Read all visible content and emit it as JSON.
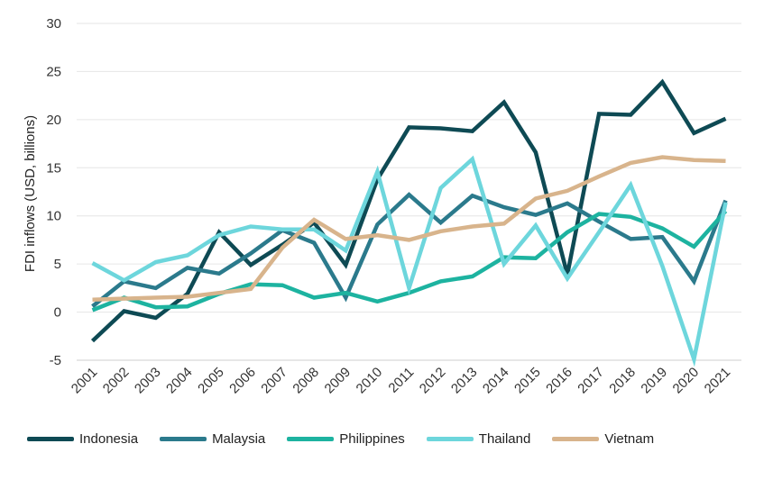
{
  "chart_data": {
    "type": "line",
    "ylabel": "FDI inflows (USD, billions)",
    "xlabel": "",
    "ylim": [
      -5,
      30
    ],
    "yticks": [
      -5,
      0,
      5,
      10,
      15,
      20,
      25,
      30
    ],
    "grid": "horizontal",
    "legend_position": "bottom",
    "categories": [
      "2001",
      "2002",
      "2003",
      "2004",
      "2005",
      "2006",
      "2007",
      "2008",
      "2009",
      "2010",
      "2011",
      "2012",
      "2013",
      "2014",
      "2015",
      "2016",
      "2017",
      "2018",
      "2019",
      "2020",
      "2021"
    ],
    "series": [
      {
        "name": "Indonesia",
        "color": "#0e4a54",
        "values": [
          -3.0,
          0.1,
          -0.6,
          1.9,
          8.3,
          4.9,
          7.0,
          9.3,
          4.9,
          13.8,
          19.2,
          19.1,
          18.8,
          21.8,
          16.6,
          3.9,
          20.6,
          20.5,
          23.9,
          18.6,
          20.1
        ]
      },
      {
        "name": "Malaysia",
        "color": "#2b7a8c",
        "values": [
          0.6,
          3.2,
          2.5,
          4.6,
          4.0,
          6.1,
          8.5,
          7.2,
          1.5,
          9.1,
          12.2,
          9.3,
          12.1,
          10.9,
          10.1,
          11.3,
          9.4,
          7.6,
          7.8,
          3.2,
          11.6
        ]
      },
      {
        "name": "Philippines",
        "color": "#1db3a0",
        "values": [
          0.2,
          1.5,
          0.5,
          0.6,
          1.9,
          2.9,
          2.8,
          1.5,
          2.0,
          1.1,
          2.0,
          3.2,
          3.7,
          5.7,
          5.6,
          8.3,
          10.2,
          9.9,
          8.7,
          6.8,
          10.5
        ]
      },
      {
        "name": "Thailand",
        "color": "#6dd6dc",
        "values": [
          5.1,
          3.3,
          5.2,
          5.9,
          8.0,
          8.9,
          8.6,
          8.6,
          6.4,
          14.6,
          2.5,
          12.9,
          15.9,
          5.0,
          9.0,
          3.5,
          8.3,
          13.2,
          4.8,
          -4.9,
          11.4
        ]
      },
      {
        "name": "Vietnam",
        "color": "#d8b48c",
        "values": [
          1.3,
          1.4,
          1.5,
          1.6,
          2.0,
          2.4,
          6.7,
          9.6,
          7.6,
          8.0,
          7.5,
          8.4,
          8.9,
          9.2,
          11.8,
          12.6,
          14.1,
          15.5,
          16.1,
          15.8,
          15.7
        ]
      }
    ]
  }
}
